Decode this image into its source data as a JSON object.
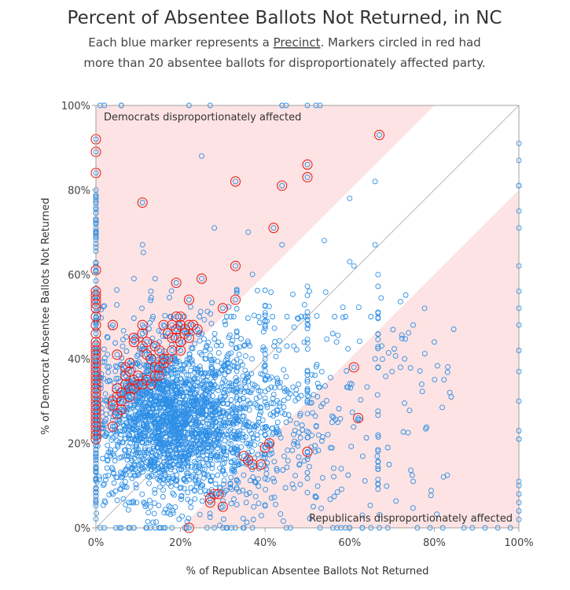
{
  "chart_data": {
    "type": "scatter",
    "title": "Percent of Absentee Ballots Not Returned, in NC",
    "subtitle_line1_pre": "Each blue marker represents a ",
    "subtitle_link": "Precinct",
    "subtitle_line1_post": ". Markers circled in red had",
    "subtitle_line2": "more than 20 absentee ballots for disproportionately affected party.",
    "xlabel": "% of Republican Absentee Ballots Not Returned",
    "ylabel": "% of Democrat Absentee Ballots Not Returned",
    "xlim": [
      0,
      100
    ],
    "ylim": [
      0,
      100
    ],
    "xticks": [
      0,
      20,
      40,
      60,
      80,
      100
    ],
    "yticks": [
      0,
      20,
      40,
      60,
      80,
      100
    ],
    "xtick_labels": [
      "0%",
      "20%",
      "40%",
      "60%",
      "80%",
      "100%"
    ],
    "ytick_labels": [
      "0%",
      "20%",
      "40%",
      "60%",
      "80%",
      "100%"
    ],
    "annotation_top": "Democrats disproportionately affected",
    "annotation_bottom": "Republicans disproportionately affected",
    "band_offset": 20,
    "colors": {
      "marker": "#2e8fe6",
      "highlight": "#e8221c",
      "band": "#fde3e3",
      "diagonal": "#a8a8a8",
      "frame": "#a0a0a0"
    },
    "highlighted_points": [
      [
        0,
        92
      ],
      [
        0,
        89
      ],
      [
        0,
        84
      ],
      [
        0,
        61
      ],
      [
        0,
        56
      ],
      [
        0,
        55
      ],
      [
        0,
        54
      ],
      [
        0,
        53
      ],
      [
        0,
        52
      ],
      [
        0,
        50
      ],
      [
        0,
        48
      ],
      [
        0,
        46
      ],
      [
        0,
        44
      ],
      [
        0,
        43
      ],
      [
        0,
        42
      ],
      [
        0,
        41
      ],
      [
        0,
        40
      ],
      [
        0,
        39
      ],
      [
        0,
        38
      ],
      [
        0,
        37
      ],
      [
        0,
        36
      ],
      [
        0,
        35
      ],
      [
        0,
        34
      ],
      [
        0,
        33
      ],
      [
        0,
        32
      ],
      [
        0,
        31
      ],
      [
        0,
        30
      ],
      [
        0,
        29
      ],
      [
        0,
        28
      ],
      [
        0,
        27
      ],
      [
        0,
        26
      ],
      [
        0,
        25
      ],
      [
        0,
        24
      ],
      [
        0,
        23
      ],
      [
        0,
        22
      ],
      [
        0,
        21
      ],
      [
        4,
        48
      ],
      [
        5,
        41
      ],
      [
        5,
        33
      ],
      [
        5,
        31
      ],
      [
        6,
        32
      ],
      [
        6,
        30
      ],
      [
        6,
        28
      ],
      [
        4,
        30
      ],
      [
        4,
        29
      ],
      [
        4,
        24
      ],
      [
        5,
        27
      ],
      [
        7,
        36
      ],
      [
        7,
        38
      ],
      [
        8,
        39
      ],
      [
        8,
        37
      ],
      [
        7,
        34
      ],
      [
        8,
        33
      ],
      [
        8,
        31
      ],
      [
        9,
        35
      ],
      [
        9,
        33
      ],
      [
        10,
        34
      ],
      [
        10,
        36
      ],
      [
        9,
        45
      ],
      [
        9,
        44
      ],
      [
        11,
        46
      ],
      [
        11,
        48
      ],
      [
        11,
        43
      ],
      [
        12,
        41
      ],
      [
        12,
        44
      ],
      [
        13,
        40
      ],
      [
        13,
        34
      ],
      [
        12,
        35
      ],
      [
        11,
        34
      ],
      [
        14,
        36
      ],
      [
        14,
        38
      ],
      [
        14,
        43
      ],
      [
        15,
        42
      ],
      [
        15,
        38
      ],
      [
        15,
        36
      ],
      [
        16,
        40
      ],
      [
        16,
        39
      ],
      [
        17,
        40
      ],
      [
        17,
        46
      ],
      [
        18,
        45
      ],
      [
        18,
        42
      ],
      [
        18,
        48
      ],
      [
        19,
        47
      ],
      [
        19,
        45
      ],
      [
        20,
        44
      ],
      [
        20,
        42
      ],
      [
        20,
        48
      ],
      [
        20,
        50
      ],
      [
        21,
        47
      ],
      [
        21,
        46
      ],
      [
        22,
        48
      ],
      [
        22,
        45
      ],
      [
        19,
        50
      ],
      [
        16,
        48
      ],
      [
        22,
        54
      ],
      [
        19,
        58
      ],
      [
        23,
        48
      ],
      [
        24,
        47
      ],
      [
        11,
        77
      ],
      [
        25,
        59
      ],
      [
        30,
        52
      ],
      [
        33,
        54
      ],
      [
        33,
        62
      ],
      [
        33,
        82
      ],
      [
        42,
        71
      ],
      [
        44,
        81
      ],
      [
        50,
        86
      ],
      [
        50,
        83
      ],
      [
        67,
        93
      ],
      [
        61,
        38
      ],
      [
        62,
        26
      ],
      [
        50,
        18
      ],
      [
        41,
        20
      ],
      [
        40,
        19
      ],
      [
        36,
        16
      ],
      [
        37,
        15
      ],
      [
        35,
        17
      ],
      [
        39,
        15
      ],
      [
        29,
        8
      ],
      [
        28,
        8
      ],
      [
        27,
        7
      ],
      [
        27,
        6
      ],
      [
        30,
        5
      ],
      [
        22,
        0
      ]
    ]
  }
}
